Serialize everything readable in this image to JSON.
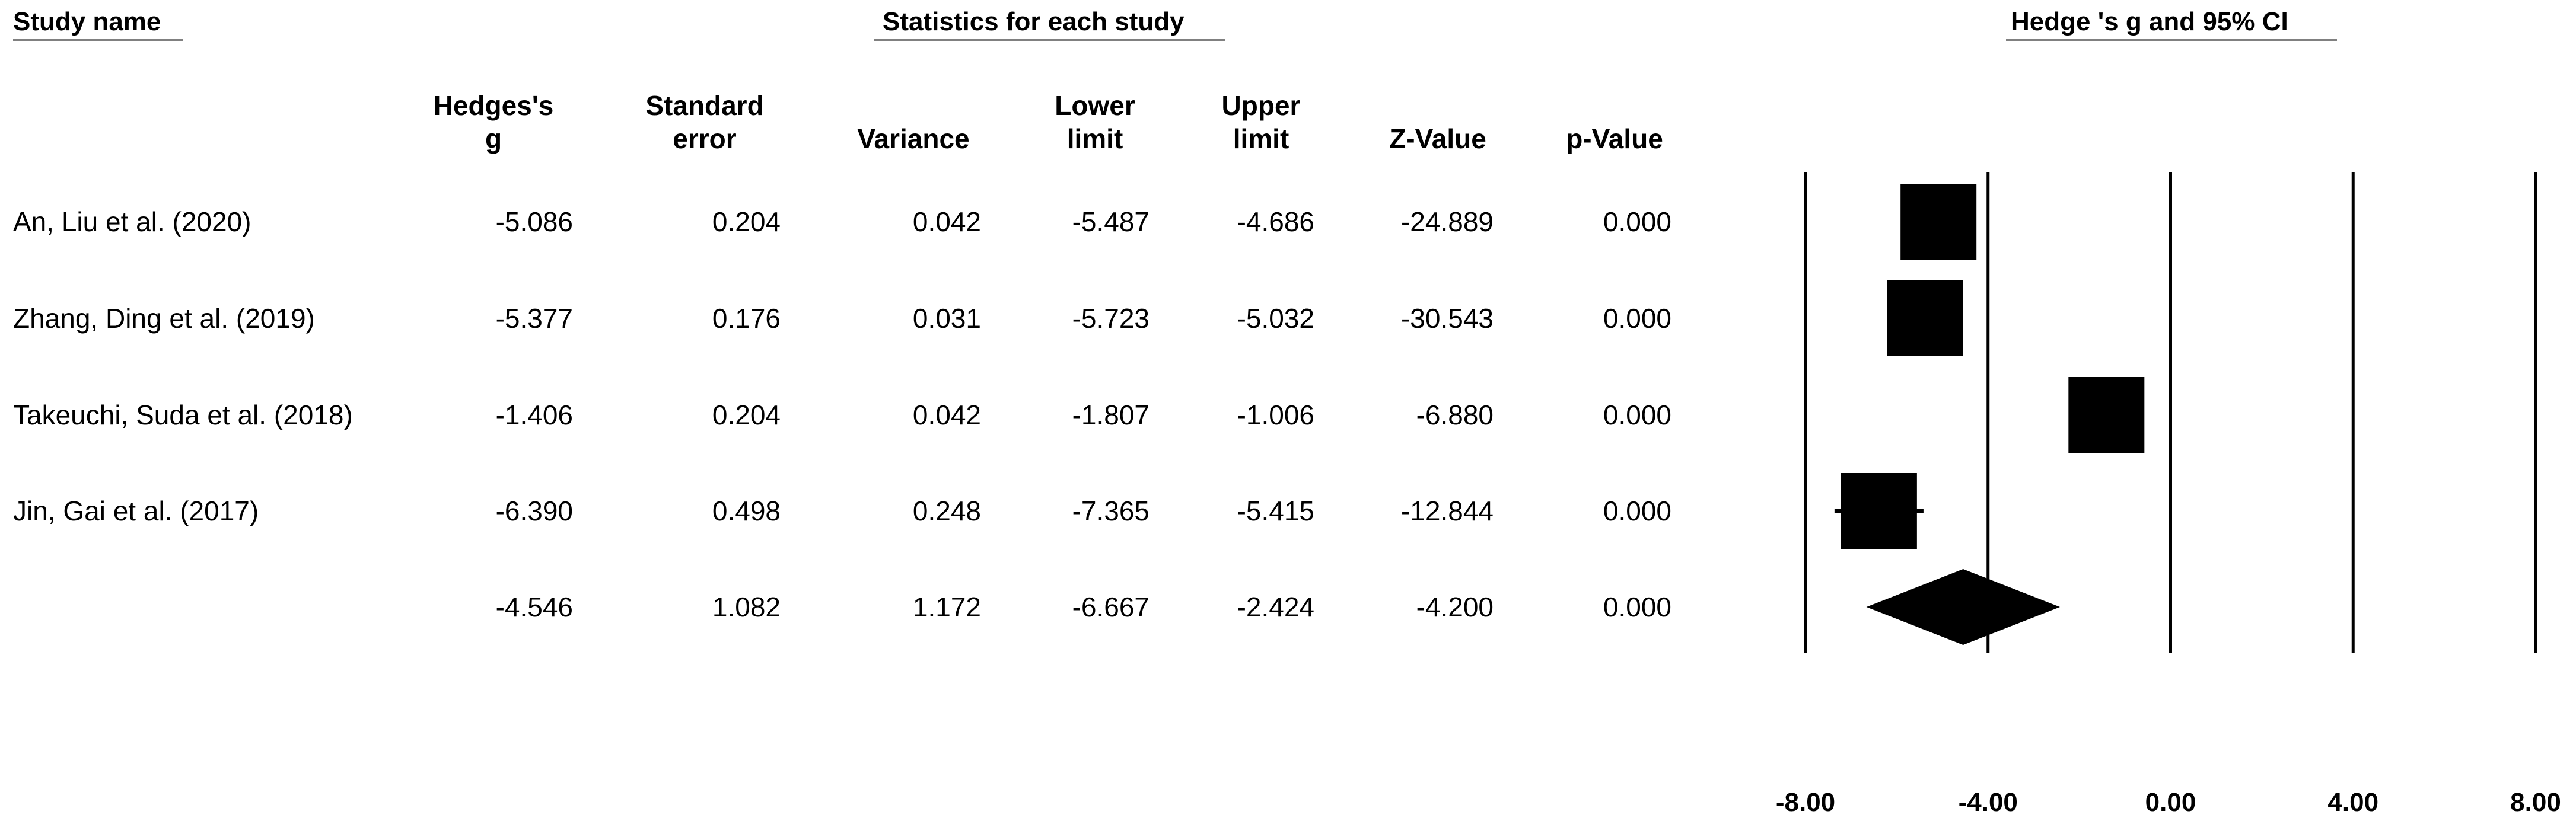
{
  "headers": {
    "study_name": "Study name",
    "statistics": "Statistics for each study",
    "plot_title": "Hedge  's g and 95% CI"
  },
  "columns": [
    "Hedges's\ng",
    "Standard\nerror",
    "Variance",
    "Lower\nlimit",
    "Upper\nlimit",
    "Z-Value",
    "p-Value"
  ],
  "rows": [
    {
      "study": "An, Liu et al. (2020)",
      "values": [
        "-5.086",
        "0.204",
        "0.042",
        "-5.487",
        "-4.686",
        "-24.889",
        "0.000"
      ]
    },
    {
      "study": "Zhang, Ding et al. (2019)",
      "values": [
        "-5.377",
        "0.176",
        "0.031",
        "-5.723",
        "-5.032",
        "-30.543",
        "0.000"
      ]
    },
    {
      "study": "Takeuchi, Suda et al. (2018)",
      "values": [
        "-1.406",
        "0.204",
        "0.042",
        "-1.807",
        "-1.006",
        "-6.880",
        "0.000"
      ]
    },
    {
      "study": "Jin, Gai et al. (2017)",
      "values": [
        "-6.390",
        "0.498",
        "0.248",
        "-7.365",
        "-5.415",
        "-12.844",
        "0.000"
      ]
    },
    {
      "study": "",
      "values": [
        "-4.546",
        "1.082",
        "1.172",
        "-6.667",
        "-2.424",
        "-4.200",
        "0.000"
      ]
    }
  ],
  "chart_data": {
    "type": "forest",
    "title": "Hedge  's g and 95% CI",
    "xlim": [
      -8,
      8
    ],
    "ticks": [
      -8,
      -4,
      0,
      4,
      8
    ],
    "tick_labels": [
      "-8.00",
      "-4.00",
      "0.00",
      "4.00",
      "8.00"
    ],
    "studies": [
      {
        "name": "An, Liu et al. (2020)",
        "g": -5.086,
        "lower": -5.487,
        "upper": -4.686
      },
      {
        "name": "Zhang, Ding et al. (2019)",
        "g": -5.377,
        "lower": -5.723,
        "upper": -5.032
      },
      {
        "name": "Takeuchi, Suda et al. (2018)",
        "g": -1.406,
        "lower": -1.807,
        "upper": -1.006
      },
      {
        "name": "Jin, Gai et al. (2017)",
        "g": -6.39,
        "lower": -7.365,
        "upper": -5.415
      }
    ],
    "summary": {
      "g": -4.546,
      "lower": -6.667,
      "upper": -2.424
    },
    "marker_color": "#000000"
  }
}
